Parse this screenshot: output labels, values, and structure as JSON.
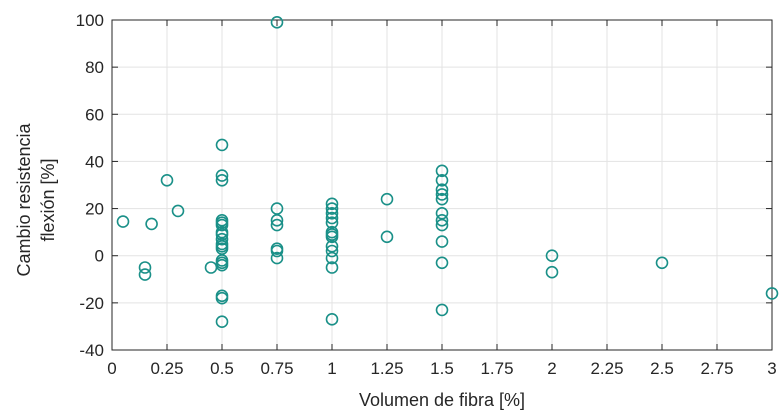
{
  "chart_data": {
    "type": "scatter",
    "title": "",
    "xlabel": "Volumen de fibra [%]",
    "ylabel_lines": [
      "Cambio resistencia",
      "flexión [%]"
    ],
    "xlim": [
      0,
      3
    ],
    "ylim": [
      -40,
      100
    ],
    "xticks": [
      0,
      0.25,
      0.5,
      0.75,
      1,
      1.25,
      1.5,
      1.75,
      2,
      2.25,
      2.5,
      2.75,
      3
    ],
    "xtick_labels": [
      "0",
      "0.25",
      "0.5",
      "0.75",
      "1",
      "1.25",
      "1.5",
      "1.75",
      "2",
      "2.25",
      "2.5",
      "2.75",
      "3"
    ],
    "yticks": [
      -40,
      -20,
      0,
      20,
      40,
      60,
      80,
      100
    ],
    "ytick_labels": [
      "-40",
      "-20",
      "0",
      "20",
      "40",
      "60",
      "80",
      "100"
    ],
    "grid": true,
    "marker": "open-circle",
    "marker_color": "#1a9088",
    "points": [
      {
        "x": 0.05,
        "y": 14.5
      },
      {
        "x": 0.15,
        "y": -5
      },
      {
        "x": 0.15,
        "y": -8
      },
      {
        "x": 0.18,
        "y": 13.5
      },
      {
        "x": 0.25,
        "y": 32
      },
      {
        "x": 0.3,
        "y": 19
      },
      {
        "x": 0.45,
        "y": -5
      },
      {
        "x": 0.5,
        "y": 47
      },
      {
        "x": 0.5,
        "y": 34
      },
      {
        "x": 0.5,
        "y": 32
      },
      {
        "x": 0.5,
        "y": 15
      },
      {
        "x": 0.5,
        "y": 14
      },
      {
        "x": 0.5,
        "y": 13
      },
      {
        "x": 0.5,
        "y": 10
      },
      {
        "x": 0.5,
        "y": 9
      },
      {
        "x": 0.5,
        "y": 7
      },
      {
        "x": 0.5,
        "y": 5
      },
      {
        "x": 0.5,
        "y": 4
      },
      {
        "x": 0.5,
        "y": 3
      },
      {
        "x": 0.5,
        "y": -2
      },
      {
        "x": 0.5,
        "y": -3
      },
      {
        "x": 0.5,
        "y": -4
      },
      {
        "x": 0.5,
        "y": -17
      },
      {
        "x": 0.5,
        "y": -18
      },
      {
        "x": 0.5,
        "y": -28
      },
      {
        "x": 0.75,
        "y": 99
      },
      {
        "x": 0.75,
        "y": 20
      },
      {
        "x": 0.75,
        "y": 15
      },
      {
        "x": 0.75,
        "y": 13
      },
      {
        "x": 0.75,
        "y": 3
      },
      {
        "x": 0.75,
        "y": 2
      },
      {
        "x": 0.75,
        "y": -1
      },
      {
        "x": 1,
        "y": 22
      },
      {
        "x": 1,
        "y": 20
      },
      {
        "x": 1,
        "y": 18
      },
      {
        "x": 1,
        "y": 16
      },
      {
        "x": 1,
        "y": 14
      },
      {
        "x": 1,
        "y": 10
      },
      {
        "x": 1,
        "y": 9
      },
      {
        "x": 1,
        "y": 8
      },
      {
        "x": 1,
        "y": 4
      },
      {
        "x": 1,
        "y": 2
      },
      {
        "x": 1,
        "y": -1
      },
      {
        "x": 1,
        "y": -5
      },
      {
        "x": 1,
        "y": -27
      },
      {
        "x": 1.25,
        "y": 24
      },
      {
        "x": 1.25,
        "y": 8
      },
      {
        "x": 1.5,
        "y": 36
      },
      {
        "x": 1.5,
        "y": 32
      },
      {
        "x": 1.5,
        "y": 28
      },
      {
        "x": 1.5,
        "y": 26
      },
      {
        "x": 1.5,
        "y": 24
      },
      {
        "x": 1.5,
        "y": 18
      },
      {
        "x": 1.5,
        "y": 15
      },
      {
        "x": 1.5,
        "y": 13
      },
      {
        "x": 1.5,
        "y": 6
      },
      {
        "x": 1.5,
        "y": -3
      },
      {
        "x": 1.5,
        "y": -23
      },
      {
        "x": 2,
        "y": 0
      },
      {
        "x": 2,
        "y": -7
      },
      {
        "x": 2.5,
        "y": -3
      },
      {
        "x": 3,
        "y": -16
      }
    ]
  }
}
